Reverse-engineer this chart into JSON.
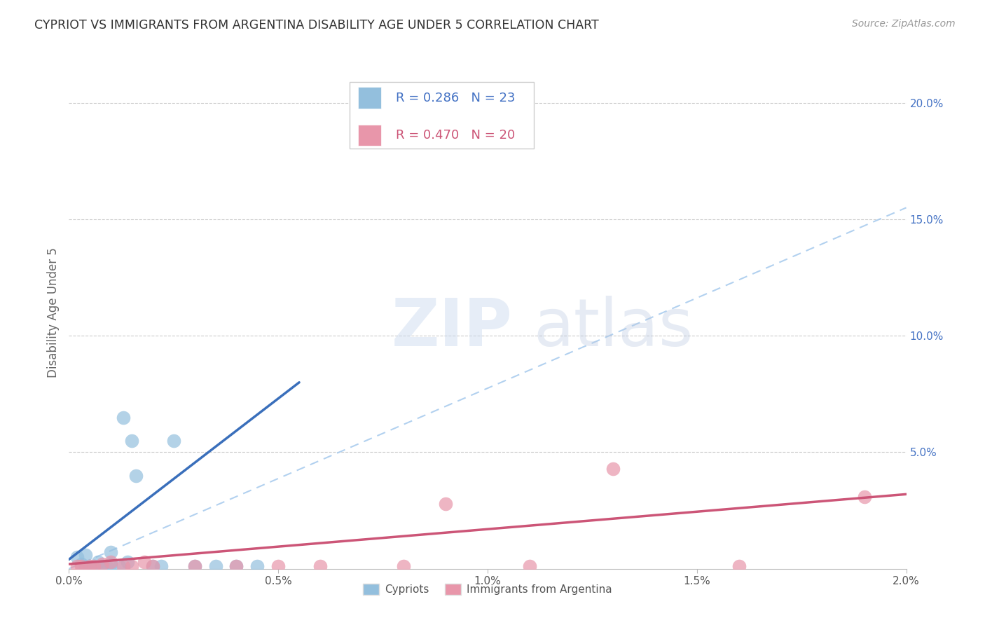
{
  "title": "CYPRIOT VS IMMIGRANTS FROM ARGENTINA DISABILITY AGE UNDER 5 CORRELATION CHART",
  "source": "Source: ZipAtlas.com",
  "ylabel_label": "Disability Age Under 5",
  "cypriot_color": "#93bfdd",
  "argentina_color": "#e896aa",
  "cypriot_line_color": "#3a6fbb",
  "argentina_line_color": "#cc5577",
  "dash_line_color": "#aaccee",
  "background_color": "#ffffff",
  "grid_color": "#cccccc",
  "xlim": [
    0.0,
    0.02
  ],
  "ylim": [
    0.0,
    0.22
  ],
  "xticks": [
    0.0,
    0.005,
    0.01,
    0.015,
    0.02
  ],
  "xticklabels": [
    "0.0%",
    "0.5%",
    "1.0%",
    "1.5%",
    "2.0%"
  ],
  "yticks": [
    0.05,
    0.1,
    0.15,
    0.2
  ],
  "yticklabels": [
    "5.0%",
    "10.0%",
    "15.0%",
    "20.0%"
  ],
  "cyp_R": "0.286",
  "cyp_N": "23",
  "arg_R": "0.470",
  "arg_N": "20",
  "cyp_x": [
    0.0002,
    0.0003,
    0.0004,
    0.0004,
    0.0005,
    0.0006,
    0.0007,
    0.0008,
    0.0009,
    0.001,
    0.001,
    0.0012,
    0.0013,
    0.0014,
    0.0015,
    0.0016,
    0.002,
    0.0022,
    0.0025,
    0.003,
    0.0035,
    0.004,
    0.0045
  ],
  "cyp_y": [
    0.005,
    0.002,
    0.001,
    0.006,
    0.001,
    0.001,
    0.003,
    0.001,
    0.001,
    0.002,
    0.007,
    0.001,
    0.065,
    0.003,
    0.055,
    0.04,
    0.001,
    0.001,
    0.055,
    0.001,
    0.001,
    0.001,
    0.001
  ],
  "arg_x": [
    0.0002,
    0.0003,
    0.0005,
    0.0006,
    0.0008,
    0.001,
    0.0013,
    0.0015,
    0.0018,
    0.002,
    0.003,
    0.004,
    0.005,
    0.006,
    0.008,
    0.009,
    0.011,
    0.013,
    0.016,
    0.019
  ],
  "arg_y": [
    0.001,
    0.001,
    0.001,
    0.001,
    0.002,
    0.003,
    0.001,
    0.001,
    0.003,
    0.001,
    0.001,
    0.001,
    0.001,
    0.001,
    0.001,
    0.028,
    0.001,
    0.043,
    0.001,
    0.031
  ],
  "cyp_line_x": [
    0.0,
    0.0055
  ],
  "cyp_line_y": [
    0.004,
    0.08
  ],
  "arg_line_x": [
    0.0,
    0.02
  ],
  "arg_line_y": [
    0.002,
    0.032
  ],
  "dash_line_x": [
    0.0,
    0.02
  ],
  "dash_line_y": [
    0.0,
    0.155
  ]
}
